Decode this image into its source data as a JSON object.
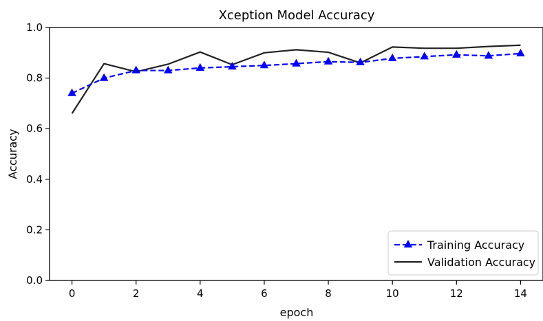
{
  "chart_data": {
    "type": "line",
    "title": "Xception Model Accuracy",
    "xlabel": "epoch",
    "ylabel": "Accuracy",
    "xlim": [
      -0.7,
      14.7
    ],
    "ylim": [
      0.0,
      1.0
    ],
    "xticks": [
      0,
      2,
      4,
      6,
      8,
      10,
      12,
      14
    ],
    "yticks": [
      0.0,
      0.2,
      0.4,
      0.6,
      0.8,
      1.0
    ],
    "xtick_labels": [
      "0",
      "2",
      "4",
      "6",
      "8",
      "10",
      "12",
      "14"
    ],
    "ytick_labels": [
      "0.0",
      "0.2",
      "0.4",
      "0.6",
      "0.8",
      "1.0"
    ],
    "grid": false,
    "legend_position": "lower-right",
    "x": [
      0,
      1,
      2,
      3,
      4,
      5,
      6,
      7,
      8,
      9,
      10,
      11,
      12,
      13,
      14
    ],
    "series": [
      {
        "name": "Training Accuracy",
        "color": "#0000ff",
        "style": "dashed",
        "marker": "triangle",
        "values": [
          0.74,
          0.8,
          0.83,
          0.83,
          0.84,
          0.845,
          0.85,
          0.857,
          0.865,
          0.862,
          0.878,
          0.885,
          0.892,
          0.888,
          0.897
        ]
      },
      {
        "name": "Validation Accuracy",
        "color": "#222222",
        "style": "solid",
        "marker": "none",
        "values": [
          0.66,
          0.857,
          0.825,
          0.855,
          0.903,
          0.853,
          0.9,
          0.912,
          0.902,
          0.86,
          0.923,
          0.918,
          0.918,
          0.925,
          0.93
        ]
      }
    ]
  }
}
